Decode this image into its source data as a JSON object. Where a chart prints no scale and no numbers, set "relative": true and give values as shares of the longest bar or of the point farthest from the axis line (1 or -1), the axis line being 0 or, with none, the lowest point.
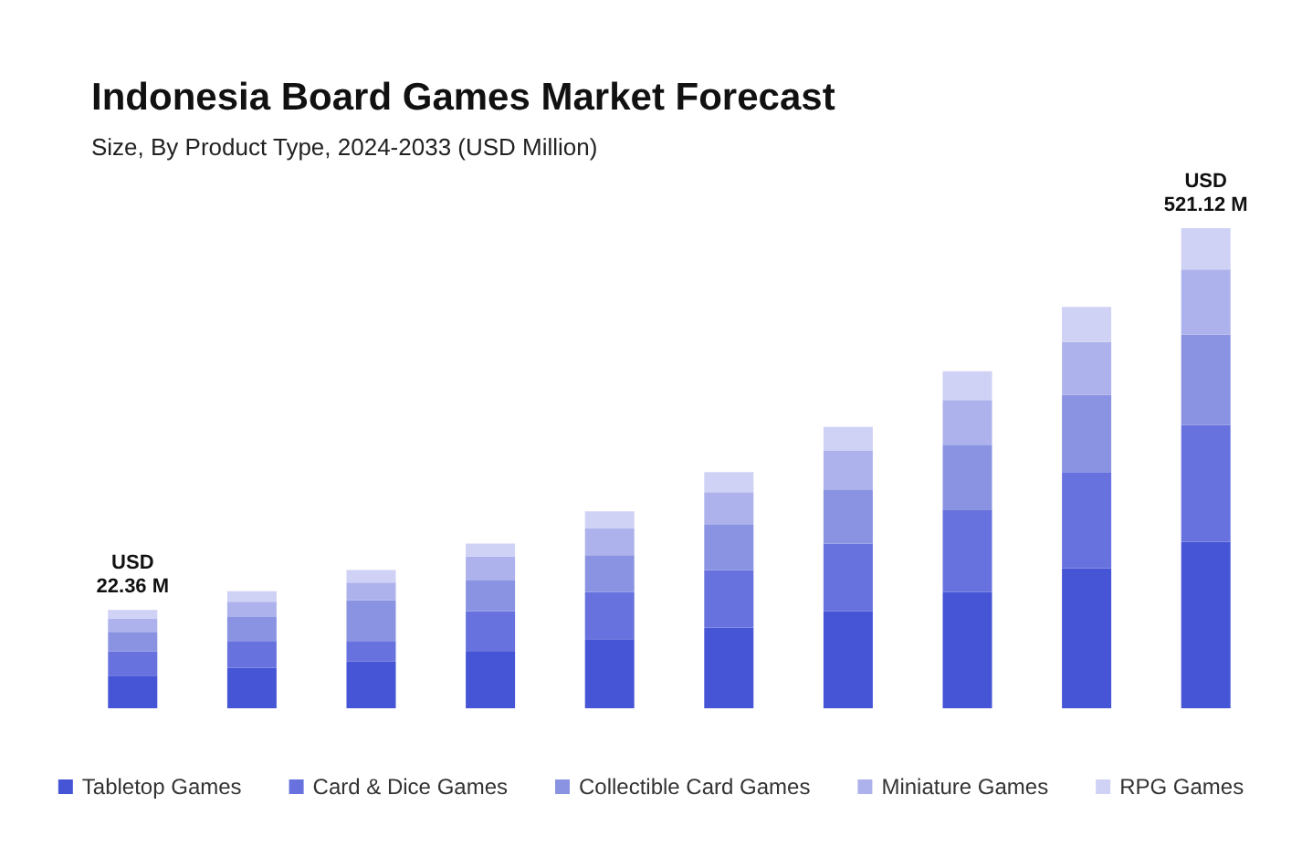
{
  "chart_data": {
    "type": "bar",
    "title": "Indonesia Board Games Market Forecast",
    "subtitle": "Size, By Product Type, 2024-2033 (USD Million)",
    "categories": [
      null,
      null,
      null,
      null,
      null,
      null,
      null,
      null,
      null,
      null
    ],
    "relative": true,
    "stacked": true,
    "legend": "bottom",
    "totals": [
      "USD 22.36 M",
      null,
      null,
      null,
      null,
      null,
      null,
      null,
      null,
      "USD 521.12 M"
    ],
    "series": [
      {
        "name": "Tabletop Games",
        "color": "#4655d6",
        "values": [
          0.068,
          0.084,
          0.098,
          0.118,
          0.144,
          0.168,
          0.202,
          0.242,
          0.292,
          0.347
        ]
      },
      {
        "name": "Card & Dice Games",
        "color": "#6872de",
        "values": [
          0.051,
          0.056,
          0.042,
          0.084,
          0.098,
          0.12,
          0.141,
          0.172,
          0.2,
          0.243
        ]
      },
      {
        "name": "Collectible Card Games",
        "color": "#8a93e2",
        "values": [
          0.04,
          0.05,
          0.085,
          0.064,
          0.077,
          0.094,
          0.113,
          0.135,
          0.161,
          0.188
        ]
      },
      {
        "name": "Miniature Games",
        "color": "#adb2ec",
        "values": [
          0.028,
          0.032,
          0.037,
          0.05,
          0.056,
          0.068,
          0.08,
          0.093,
          0.11,
          0.136
        ]
      },
      {
        "name": "RPG Games",
        "color": "#cfd1f5",
        "values": [
          0.018,
          0.022,
          0.026,
          0.027,
          0.035,
          0.042,
          0.05,
          0.06,
          0.073,
          0.086
        ]
      }
    ]
  }
}
